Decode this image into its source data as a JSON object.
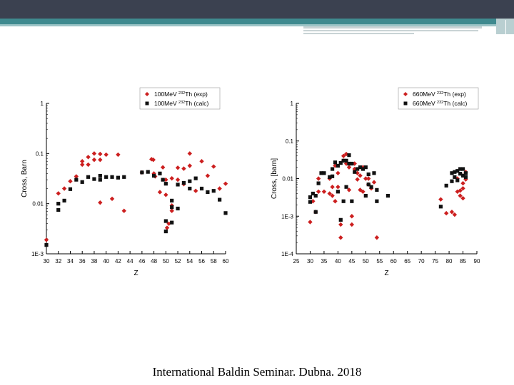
{
  "colors": {
    "exp": "#cc1f1f",
    "calc": "#111111",
    "topbar": "#3b4150",
    "accent": "#3f8a8f"
  },
  "footer": {
    "text": "International Baldin Seminar. Dubna. 2018"
  },
  "chart_data": [
    {
      "type": "scatter",
      "title": "",
      "xlabel": "Z",
      "ylabel": "Cross, Barn",
      "xlim": [
        30,
        60
      ],
      "ylim": [
        0.001,
        1
      ],
      "yscale": "log",
      "xticks": [
        30,
        32,
        34,
        36,
        38,
        40,
        42,
        44,
        46,
        48,
        50,
        52,
        54,
        56,
        58,
        60
      ],
      "yticks": [
        0.001,
        0.01,
        0.1,
        1
      ],
      "ytick_labels": [
        "1E-3",
        "0.01",
        "0.1",
        "1"
      ],
      "legend_position": "top-right",
      "series": [
        {
          "name_prefix": "100MeV ",
          "name_sup": "232",
          "name_suffix": "Th (exp)",
          "marker": "diamond",
          "color": "#cc1f1f",
          "points": [
            [
              30,
              0.0019
            ],
            [
              32,
              0.016
            ],
            [
              33,
              0.02
            ],
            [
              34,
              0.028
            ],
            [
              35,
              0.035
            ],
            [
              36,
              0.06
            ],
            [
              36,
              0.07
            ],
            [
              37,
              0.085
            ],
            [
              37,
              0.06
            ],
            [
              38,
              0.1
            ],
            [
              38,
              0.075
            ],
            [
              39,
              0.098
            ],
            [
              39,
              0.075
            ],
            [
              39,
              0.0105
            ],
            [
              40,
              0.095
            ],
            [
              41,
              0.0125
            ],
            [
              42,
              0.095
            ],
            [
              43,
              0.0072
            ],
            [
              46,
              0.042
            ],
            [
              47.6,
              0.077
            ],
            [
              47.9,
              0.075
            ],
            [
              48,
              0.04
            ],
            [
              48.2,
              0.035
            ],
            [
              49,
              0.017
            ],
            [
              49.5,
              0.053
            ],
            [
              50,
              0.03
            ],
            [
              50,
              0.015
            ],
            [
              50.2,
              0.0033
            ],
            [
              50.5,
              0.004
            ],
            [
              51,
              0.032
            ],
            [
              51,
              0.0092
            ],
            [
              51,
              0.0072
            ],
            [
              52,
              0.052
            ],
            [
              52,
              0.03
            ],
            [
              53,
              0.05
            ],
            [
              53,
              0.0245
            ],
            [
              54,
              0.1
            ],
            [
              54,
              0.057
            ],
            [
              55,
              0.018
            ],
            [
              56,
              0.07
            ],
            [
              57,
              0.036
            ],
            [
              58,
              0.055
            ],
            [
              59,
              0.02
            ],
            [
              60,
              0.025
            ]
          ]
        },
        {
          "name_prefix": "100MeV ",
          "name_sup": "232",
          "name_suffix": "Th (calc)",
          "marker": "square",
          "color": "#111111",
          "points": [
            [
              30,
              0.0015
            ],
            [
              32,
              0.0075
            ],
            [
              32,
              0.01
            ],
            [
              33,
              0.0115
            ],
            [
              34,
              0.0195
            ],
            [
              35,
              0.03
            ],
            [
              36,
              0.027
            ],
            [
              37,
              0.034
            ],
            [
              38,
              0.031
            ],
            [
              39,
              0.036
            ],
            [
              39,
              0.03
            ],
            [
              40,
              0.034
            ],
            [
              41,
              0.034
            ],
            [
              42,
              0.033
            ],
            [
              43,
              0.034
            ],
            [
              46,
              0.042
            ],
            [
              47,
              0.043
            ],
            [
              48,
              0.036
            ],
            [
              49,
              0.04
            ],
            [
              49.5,
              0.03
            ],
            [
              50,
              0.025
            ],
            [
              50,
              0.0045
            ],
            [
              50,
              0.0028
            ],
            [
              51,
              0.0115
            ],
            [
              51,
              0.0085
            ],
            [
              51,
              0.0042
            ],
            [
              52,
              0.024
            ],
            [
              52,
              0.008
            ],
            [
              53,
              0.026
            ],
            [
              54,
              0.028
            ],
            [
              54,
              0.02
            ],
            [
              55,
              0.032
            ],
            [
              56,
              0.02
            ],
            [
              57,
              0.017
            ],
            [
              58,
              0.018
            ],
            [
              59,
              0.012
            ],
            [
              60,
              0.0065
            ]
          ]
        }
      ]
    },
    {
      "type": "scatter",
      "title": "",
      "xlabel": "Z",
      "ylabel": "Cross, [barn]",
      "xlim": [
        25,
        90
      ],
      "ylim": [
        0.0001,
        1
      ],
      "yscale": "log",
      "xticks": [
        25,
        30,
        35,
        40,
        45,
        50,
        55,
        60,
        65,
        70,
        75,
        80,
        85,
        90
      ],
      "yticks": [
        0.0001,
        0.001,
        0.01,
        0.1,
        1
      ],
      "ytick_labels": [
        "1E-4",
        "1E-3",
        "0.01",
        "0.1",
        "1"
      ],
      "legend_position": "top-right",
      "series": [
        {
          "name_prefix": "660MeV ",
          "name_sup": "232",
          "name_suffix": "Th (exp)",
          "marker": "diamond",
          "color": "#cc1f1f",
          "points": [
            [
              30,
              0.0007
            ],
            [
              31,
              0.0025
            ],
            [
              32,
              0.0013
            ],
            [
              33,
              0.01
            ],
            [
              33,
              0.0045
            ],
            [
              35,
              0.0045
            ],
            [
              37,
              0.01
            ],
            [
              37,
              0.004
            ],
            [
              38,
              0.006
            ],
            [
              38,
              0.0035
            ],
            [
              39,
              0.022
            ],
            [
              39,
              0.0025
            ],
            [
              40,
              0.014
            ],
            [
              40,
              0.006
            ],
            [
              41,
              0.0006
            ],
            [
              41,
              0.00027
            ],
            [
              42,
              0.04
            ],
            [
              42,
              0.03
            ],
            [
              43,
              0.045
            ],
            [
              43,
              0.025
            ],
            [
              44,
              0.02
            ],
            [
              44,
              0.005
            ],
            [
              45,
              0.001
            ],
            [
              45,
              0.0006
            ],
            [
              46,
              0.025
            ],
            [
              46,
              0.018
            ],
            [
              47,
              0.014
            ],
            [
              47,
              0.0095
            ],
            [
              48,
              0.012
            ],
            [
              48,
              0.005
            ],
            [
              49,
              0.02
            ],
            [
              49,
              0.0045
            ],
            [
              50,
              0.01
            ],
            [
              51,
              0.01
            ],
            [
              51,
              0.007
            ],
            [
              52,
              0.0055
            ],
            [
              53,
              0.008
            ],
            [
              54,
              0.00027
            ],
            [
              77,
              0.0028
            ],
            [
              79,
              0.0012
            ],
            [
              81,
              0.0013
            ],
            [
              82,
              0.0011
            ],
            [
              83,
              0.01
            ],
            [
              83,
              0.0045
            ],
            [
              84,
              0.0048
            ],
            [
              84,
              0.0035
            ],
            [
              85,
              0.012
            ],
            [
              85,
              0.0075
            ],
            [
              85,
              0.0055
            ],
            [
              85,
              0.003
            ],
            [
              86,
              0.015
            ],
            [
              86,
              0.0095
            ]
          ]
        },
        {
          "name_prefix": "660MeV ",
          "name_sup": "232",
          "name_suffix": "Th (calc)",
          "marker": "square",
          "color": "#111111",
          "points": [
            [
              30,
              0.0024
            ],
            [
              30,
              0.0032
            ],
            [
              31,
              0.004
            ],
            [
              32,
              0.0035
            ],
            [
              32,
              0.0013
            ],
            [
              33,
              0.0075
            ],
            [
              34,
              0.014
            ],
            [
              35,
              0.014
            ],
            [
              37,
              0.011
            ],
            [
              38,
              0.018
            ],
            [
              38,
              0.0115
            ],
            [
              39,
              0.027
            ],
            [
              40,
              0.022
            ],
            [
              40,
              0.0045
            ],
            [
              41,
              0.0008
            ],
            [
              41,
              0.026
            ],
            [
              42,
              0.03
            ],
            [
              42,
              0.0025
            ],
            [
              43,
              0.03
            ],
            [
              43,
              0.006
            ],
            [
              44,
              0.042
            ],
            [
              44,
              0.025
            ],
            [
              45,
              0.025
            ],
            [
              45,
              0.0025
            ],
            [
              46,
              0.015
            ],
            [
              47,
              0.018
            ],
            [
              48,
              0.02
            ],
            [
              49,
              0.018
            ],
            [
              50,
              0.02
            ],
            [
              50,
              0.0035
            ],
            [
              51,
              0.013
            ],
            [
              51,
              0.007
            ],
            [
              52,
              0.006
            ],
            [
              53,
              0.014
            ],
            [
              54,
              0.005
            ],
            [
              54,
              0.0025
            ],
            [
              58,
              0.0035
            ],
            [
              77,
              0.0018
            ],
            [
              79,
              0.0065
            ],
            [
              81,
              0.014
            ],
            [
              81,
              0.0085
            ],
            [
              82,
              0.015
            ],
            [
              82,
              0.011
            ],
            [
              83,
              0.016
            ],
            [
              83,
              0.009
            ],
            [
              84,
              0.018
            ],
            [
              84,
              0.0135
            ],
            [
              85,
              0.018
            ],
            [
              85,
              0.012
            ],
            [
              86,
              0.014
            ],
            [
              86,
              0.011
            ]
          ]
        }
      ]
    }
  ]
}
